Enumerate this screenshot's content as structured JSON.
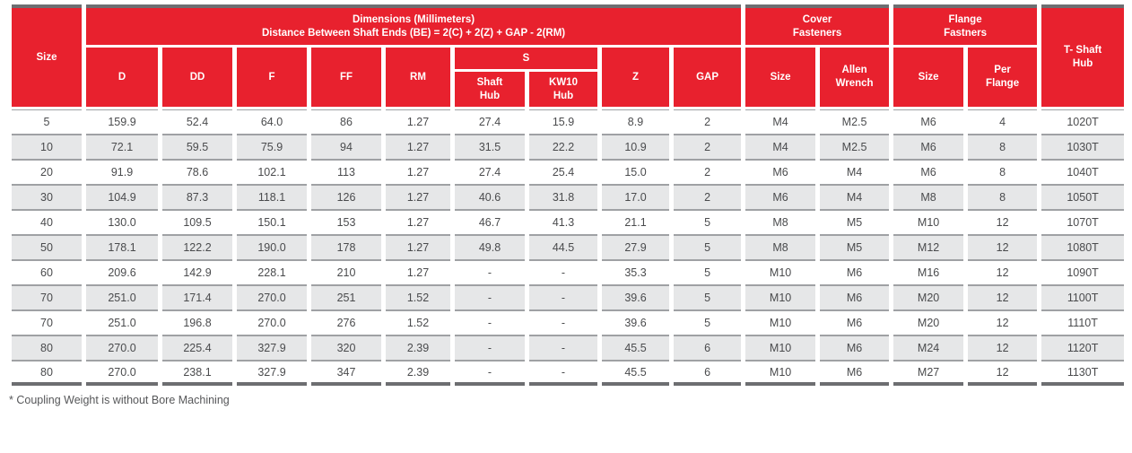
{
  "table": {
    "header": {
      "size_col": "Size",
      "dimensions_group": "Dimensions (Millimeters)\nDistance Between Shaft Ends (BE) = 2(C) + 2(Z) + GAP - 2(RM)",
      "cover_fasteners_group": "Cover\nFasteners",
      "flange_fastners_group": "Flange\nFastners",
      "t_shaft_hub": "T- Shaft\nHub",
      "d": "D",
      "dd": "DD",
      "f": "F",
      "ff": "FF",
      "rm": "RM",
      "s_group": "S",
      "shaft_hub": "Shaft\nHub",
      "kw10_hub": "KW10\nHub",
      "z": "Z",
      "gap": "GAP",
      "cover_size": "Size",
      "allen_wrench": "Allen\nWrench",
      "flange_size": "Size",
      "per_flange": "Per\nFlange"
    },
    "rows": [
      [
        "5",
        "159.9",
        "52.4",
        "64.0",
        "86",
        "1.27",
        "27.4",
        "15.9",
        "8.9",
        "2",
        "M4",
        "M2.5",
        "M6",
        "4",
        "1020T"
      ],
      [
        "10",
        "72.1",
        "59.5",
        "75.9",
        "94",
        "1.27",
        "31.5",
        "22.2",
        "10.9",
        "2",
        "M4",
        "M2.5",
        "M6",
        "8",
        "1030T"
      ],
      [
        "20",
        "91.9",
        "78.6",
        "102.1",
        "113",
        "1.27",
        "27.4",
        "25.4",
        "15.0",
        "2",
        "M6",
        "M4",
        "M6",
        "8",
        "1040T"
      ],
      [
        "30",
        "104.9",
        "87.3",
        "118.1",
        "126",
        "1.27",
        "40.6",
        "31.8",
        "17.0",
        "2",
        "M6",
        "M4",
        "M8",
        "8",
        "1050T"
      ],
      [
        "40",
        "130.0",
        "109.5",
        "150.1",
        "153",
        "1.27",
        "46.7",
        "41.3",
        "21.1",
        "5",
        "M8",
        "M5",
        "M10",
        "12",
        "1070T"
      ],
      [
        "50",
        "178.1",
        "122.2",
        "190.0",
        "178",
        "1.27",
        "49.8",
        "44.5",
        "27.9",
        "5",
        "M8",
        "M5",
        "M12",
        "12",
        "1080T"
      ],
      [
        "60",
        "209.6",
        "142.9",
        "228.1",
        "210",
        "1.27",
        "-",
        "-",
        "35.3",
        "5",
        "M10",
        "M6",
        "M16",
        "12",
        "1090T"
      ],
      [
        "70",
        "251.0",
        "171.4",
        "270.0",
        "251",
        "1.52",
        "-",
        "-",
        "39.6",
        "5",
        "M10",
        "M6",
        "M20",
        "12",
        "1100T"
      ],
      [
        "70",
        "251.0",
        "196.8",
        "270.0",
        "276",
        "1.52",
        "-",
        "-",
        "39.6",
        "5",
        "M10",
        "M6",
        "M20",
        "12",
        "1110T"
      ],
      [
        "80",
        "270.0",
        "225.4",
        "327.9",
        "320",
        "2.39",
        "-",
        "-",
        "45.5",
        "6",
        "M10",
        "M6",
        "M24",
        "12",
        "1120T"
      ],
      [
        "80",
        "270.0",
        "238.1",
        "327.9",
        "347",
        "2.39",
        "-",
        "-",
        "45.5",
        "6",
        "M10",
        "M6",
        "M27",
        "12",
        "1130T"
      ]
    ],
    "footnote": "* Coupling Weight is without Bore Machining"
  },
  "colors": {
    "header_red": "#e8212e",
    "bar_gray": "#6d6e71",
    "grid_line_gray": "#9fa1a4",
    "row_stripe_gray": "#e6e7e8",
    "body_text_gray": "#4a4b4d"
  }
}
